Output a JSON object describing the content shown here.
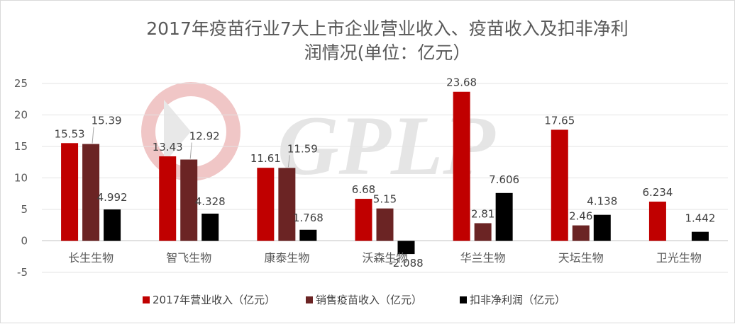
{
  "chart_data": {
    "type": "bar",
    "title_lines": [
      "2017年疫苗行业7大上市企业营业收入、疫苗收入及扣非净利",
      "润情况(单位：亿元）"
    ],
    "categories": [
      "长生生物",
      "智飞生物",
      "康泰生物",
      "沃森生物",
      "华兰生物",
      "天坛生物",
      "卫光生物"
    ],
    "series": [
      {
        "name": "2017年营业收入（亿元）",
        "color": "#c00000",
        "values": [
          15.53,
          13.43,
          11.61,
          6.68,
          23.68,
          17.65,
          6.234
        ],
        "labels": [
          "15.53",
          "13.43",
          "11.61",
          "6.68",
          "23.68",
          "17.65",
          "6.234"
        ]
      },
      {
        "name": "销售疫苗收入（亿元）",
        "color": "#6b2424",
        "values": [
          15.39,
          12.92,
          11.59,
          5.15,
          2.81,
          2.46,
          null
        ],
        "labels": [
          "15.39",
          "12.92",
          "11.59",
          "5.15",
          "2.81",
          "2.46",
          ""
        ]
      },
      {
        "name": "扣非净利润（亿元）",
        "color": "#000000",
        "values": [
          4.992,
          4.328,
          1.768,
          -2.088,
          7.606,
          4.138,
          1.442
        ],
        "labels": [
          "4.992",
          "4.328",
          "1.768",
          "-2.088",
          "7.606",
          "4.138",
          "1.442"
        ]
      }
    ],
    "yticks": [
      "25",
      "20",
      "15",
      "10",
      "5",
      "0",
      "-5"
    ],
    "ylim": [
      -5,
      25
    ],
    "grid": true,
    "legend_position": "bottom",
    "watermark": "GPLP"
  }
}
